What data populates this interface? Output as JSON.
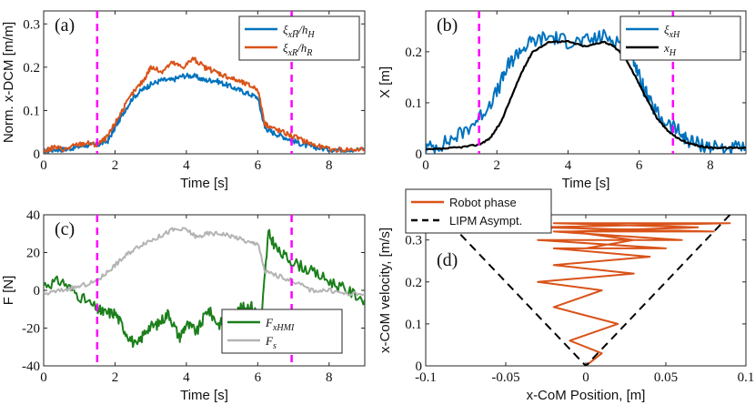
{
  "colors": {
    "blue": "#0072BD",
    "orange": "#D95319",
    "green": "#1B7F1B",
    "gray": "#B4B4B4",
    "black": "#000000",
    "magenta": "#FF00FF"
  },
  "chart_data": [
    {
      "id": "a",
      "type": "line",
      "panel_label": "(a)",
      "xlabel": "Time [s]",
      "ylabel": "Norm. x-DCM [m/m]",
      "xlim": [
        0,
        9
      ],
      "ylim": [
        0,
        0.33
      ],
      "xticks": [
        0,
        2,
        4,
        6,
        8
      ],
      "xtick_labels": [
        "0",
        "2",
        "4",
        "6",
        "8"
      ],
      "yticks": [
        0,
        0.1,
        0.2,
        0.3
      ],
      "ytick_labels": [
        "0",
        "0.1",
        "0.2",
        "0.3"
      ],
      "vlines": [
        1.5,
        6.95
      ],
      "legend_position": "top-right",
      "series": [
        {
          "name": "ξ_xH̅ / h_H",
          "label_main": "ξ",
          "label_sub": "xH̅",
          "label_tail": "/h",
          "label_tail_sub": "H",
          "color": "blue",
          "x": [
            0,
            0.3,
            0.6,
            0.9,
            1.2,
            1.5,
            1.8,
            2.0,
            2.2,
            2.5,
            2.8,
            3.0,
            3.3,
            3.6,
            3.9,
            4.2,
            4.5,
            4.8,
            5.1,
            5.4,
            5.7,
            6.0,
            6.2,
            6.4,
            6.7,
            7.0,
            7.3,
            7.6,
            8.0,
            8.5,
            9.0
          ],
          "y": [
            0.005,
            0.01,
            0.01,
            0.015,
            0.02,
            0.02,
            0.03,
            0.06,
            0.09,
            0.13,
            0.15,
            0.16,
            0.17,
            0.17,
            0.18,
            0.18,
            0.17,
            0.17,
            0.16,
            0.15,
            0.14,
            0.13,
            0.06,
            0.05,
            0.04,
            0.03,
            0.02,
            0.015,
            0.01,
            0.01,
            0.01
          ]
        },
        {
          "name": "ξ_xR / h_R",
          "label_main": "ξ",
          "label_sub": "xR",
          "label_tail": "/h",
          "label_tail_sub": "R",
          "color": "orange",
          "x": [
            0,
            0.3,
            0.6,
            0.9,
            1.2,
            1.5,
            1.8,
            2.0,
            2.2,
            2.5,
            2.8,
            3.0,
            3.3,
            3.6,
            3.9,
            4.2,
            4.5,
            4.8,
            5.1,
            5.4,
            5.7,
            6.0,
            6.2,
            6.4,
            6.7,
            7.0,
            7.3,
            7.6,
            8.0,
            8.5,
            9.0
          ],
          "y": [
            0.005,
            0.015,
            0.01,
            0.02,
            0.025,
            0.02,
            0.04,
            0.07,
            0.1,
            0.14,
            0.17,
            0.2,
            0.19,
            0.21,
            0.2,
            0.22,
            0.2,
            0.19,
            0.18,
            0.17,
            0.16,
            0.15,
            0.07,
            0.06,
            0.05,
            0.04,
            0.03,
            0.02,
            0.01,
            0.01,
            0.01
          ]
        }
      ]
    },
    {
      "id": "b",
      "type": "line",
      "panel_label": "(b)",
      "xlabel": "Time [s]",
      "ylabel": "X [m]",
      "xlim": [
        0,
        9
      ],
      "ylim": [
        0,
        0.28
      ],
      "xticks": [
        0,
        2,
        4,
        6,
        8
      ],
      "xtick_labels": [
        "0",
        "2",
        "4",
        "6",
        "8"
      ],
      "yticks": [
        0,
        0.1,
        0.2
      ],
      "ytick_labels": [
        "0",
        "0.1",
        "0.2"
      ],
      "vlines": [
        1.5,
        6.95
      ],
      "legend_position": "top-right",
      "series": [
        {
          "name": "ξ_xH",
          "label_main": "ξ",
          "label_sub": "xH",
          "label_tail": "",
          "label_tail_sub": "",
          "color": "blue",
          "x": [
            0,
            0.5,
            1.0,
            1.5,
            2.0,
            2.3,
            2.6,
            3.0,
            3.5,
            4.0,
            4.5,
            5.0,
            5.5,
            5.8,
            6.0,
            6.3,
            6.6,
            7.0,
            7.3,
            7.6,
            8.0,
            8.5,
            9.0
          ],
          "y": [
            0.01,
            0.02,
            0.04,
            0.07,
            0.12,
            0.17,
            0.2,
            0.22,
            0.23,
            0.22,
            0.22,
            0.23,
            0.22,
            0.2,
            0.15,
            0.1,
            0.07,
            0.05,
            0.03,
            0.02,
            0.015,
            0.01,
            0.01
          ]
        },
        {
          "name": "x_H",
          "label_main": "x",
          "label_sub": "H",
          "label_tail": "",
          "label_tail_sub": "",
          "color": "black",
          "x": [
            0,
            0.5,
            1.0,
            1.5,
            1.8,
            2.1,
            2.4,
            2.7,
            3.0,
            3.5,
            4.0,
            4.5,
            5.0,
            5.3,
            5.6,
            5.9,
            6.2,
            6.5,
            6.8,
            7.1,
            7.4,
            7.7,
            8.0,
            8.5,
            9.0
          ],
          "y": [
            0.008,
            0.01,
            0.013,
            0.018,
            0.03,
            0.06,
            0.11,
            0.16,
            0.2,
            0.22,
            0.22,
            0.21,
            0.22,
            0.21,
            0.19,
            0.15,
            0.11,
            0.07,
            0.045,
            0.03,
            0.02,
            0.015,
            0.012,
            0.012,
            0.012
          ]
        }
      ]
    },
    {
      "id": "c",
      "type": "line",
      "panel_label": "(c)",
      "xlabel": "Time [s]",
      "ylabel": "F [N]",
      "xlim": [
        0,
        9
      ],
      "ylim": [
        -40,
        40
      ],
      "xticks": [
        0,
        2,
        4,
        6,
        8
      ],
      "xtick_labels": [
        "0",
        "2",
        "4",
        "6",
        "8"
      ],
      "yticks": [
        -40,
        -20,
        0,
        20,
        40
      ],
      "ytick_labels": [
        "-40",
        "-20",
        "0",
        "20",
        "40"
      ],
      "vlines": [
        1.5,
        6.95
      ],
      "legend_position": "bottom-right",
      "series": [
        {
          "name": "F_xHMI",
          "label_main": "F",
          "label_sub": "xHMI",
          "label_tail": "",
          "label_tail_sub": "",
          "color": "green",
          "x": [
            0,
            0.5,
            1.0,
            1.5,
            1.7,
            2.0,
            2.3,
            2.6,
            2.9,
            3.2,
            3.5,
            3.8,
            4.0,
            4.3,
            4.6,
            4.9,
            5.2,
            5.5,
            5.8,
            6.1,
            6.3,
            6.6,
            7.0,
            7.5,
            8.0,
            8.5,
            9.0
          ],
          "y": [
            3,
            5,
            -3,
            -10,
            -12,
            -12,
            -22,
            -30,
            -20,
            -18,
            -12,
            -25,
            -18,
            -22,
            -10,
            -18,
            -15,
            -10,
            -8,
            -15,
            30,
            20,
            15,
            10,
            5,
            0,
            -5
          ]
        },
        {
          "name": "F_s",
          "label_main": "F",
          "label_sub": "s",
          "label_tail": "",
          "label_tail_sub": "",
          "color": "gray",
          "x": [
            0,
            0.5,
            1.0,
            1.5,
            1.8,
            2.1,
            2.4,
            2.8,
            3.2,
            3.6,
            4.0,
            4.3,
            4.6,
            5.0,
            5.4,
            5.8,
            6.0,
            6.2,
            6.5,
            7.0,
            7.5,
            8.0,
            8.5,
            9.0
          ],
          "y": [
            -2,
            0,
            2,
            5,
            10,
            15,
            20,
            25,
            28,
            32,
            32,
            28,
            30,
            30,
            28,
            25,
            25,
            10,
            8,
            5,
            0,
            0,
            -2,
            -2
          ]
        }
      ]
    },
    {
      "id": "d",
      "type": "line",
      "panel_label": "(d)",
      "xlabel": "x-CoM Position, [m]",
      "ylabel": "x-CoM velocity, [m/s]",
      "xlim": [
        -0.1,
        0.1
      ],
      "ylim": [
        0,
        0.36
      ],
      "xticks": [
        -0.1,
        -0.05,
        0,
        0.05,
        0.1
      ],
      "xtick_labels": [
        "-0.1",
        "-0.05",
        "0",
        "0.05",
        "0.1"
      ],
      "yticks": [
        0,
        0.1,
        0.2,
        0.3
      ],
      "ytick_labels": [
        "0",
        "0.1",
        "0.2",
        "0.3"
      ],
      "vlines": [],
      "legend_position": "top-left",
      "series": [
        {
          "name": "Robot phase",
          "label_main": "Robot phase",
          "label_sub": "",
          "label_tail": "",
          "label_tail_sub": "",
          "color": "orange",
          "x": [
            0,
            0.01,
            -0.01,
            0.02,
            -0.02,
            0.01,
            -0.03,
            0.03,
            -0.02,
            0.04,
            -0.02,
            0.05,
            -0.03,
            0.06,
            -0.02,
            0.08,
            -0.03,
            0.09,
            -0.02,
            0.07,
            -0.01,
            0.03,
            0.0
          ],
          "y": [
            0.0,
            0.03,
            0.06,
            0.1,
            0.14,
            0.18,
            0.2,
            0.22,
            0.24,
            0.26,
            0.28,
            0.28,
            0.3,
            0.3,
            0.32,
            0.32,
            0.33,
            0.34,
            0.34,
            0.33,
            0.32,
            0.3,
            0.28
          ]
        },
        {
          "name": "LIPM Asympt.",
          "label_main": "LIPM Asympt.",
          "label_sub": "",
          "label_tail": "",
          "label_tail_sub": "",
          "color": "black",
          "x": [
            -0.09,
            0,
            0.09
          ],
          "y": [
            0.36,
            0,
            0.36
          ]
        }
      ]
    }
  ]
}
